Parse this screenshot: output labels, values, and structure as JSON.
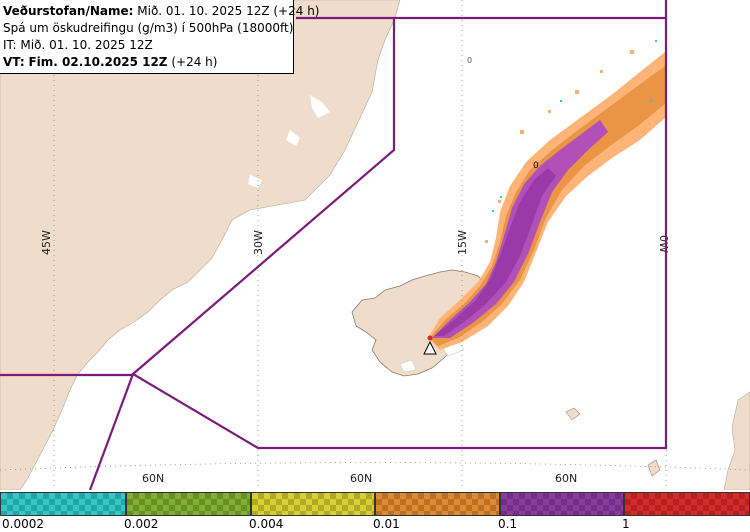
{
  "info": {
    "name_label": "Veðurstofan/Name:",
    "name_value": "Mið. 01. 10. 2025 12Z (+24 h)",
    "description": "Spá um öskudreifingu (g/m3) í 500hPa (18000ft)",
    "initial_time": "IT: Mið. 01. 10. 2025 12Z",
    "valid_label": "VT:",
    "valid_value": "Fim. 02.10.2025 12Z",
    "valid_offset": "(+24 h)"
  },
  "grid": {
    "meridians": [
      "45W",
      "30W",
      "15W",
      "0W"
    ],
    "parallels": [
      "60N",
      "60N",
      "60N"
    ]
  },
  "plume_marker": "0",
  "legend": {
    "ticks": [
      "0.0002",
      "0.002",
      "0.004",
      "0.01",
      "0.1",
      "1"
    ],
    "colors": [
      "#30c8c8",
      "#80b030",
      "#d8d030",
      "#e08a30",
      "#8a3aa0",
      "#d82a2a"
    ]
  },
  "colors": {
    "land": "#f0dcca",
    "sea": "#ffffff",
    "boundary": "#7a1a7a",
    "plume_outer": "#ffb070",
    "plume_mid": "#e89040",
    "plume_inner": "#b050b8",
    "plume_core": "#9a3aa8"
  }
}
